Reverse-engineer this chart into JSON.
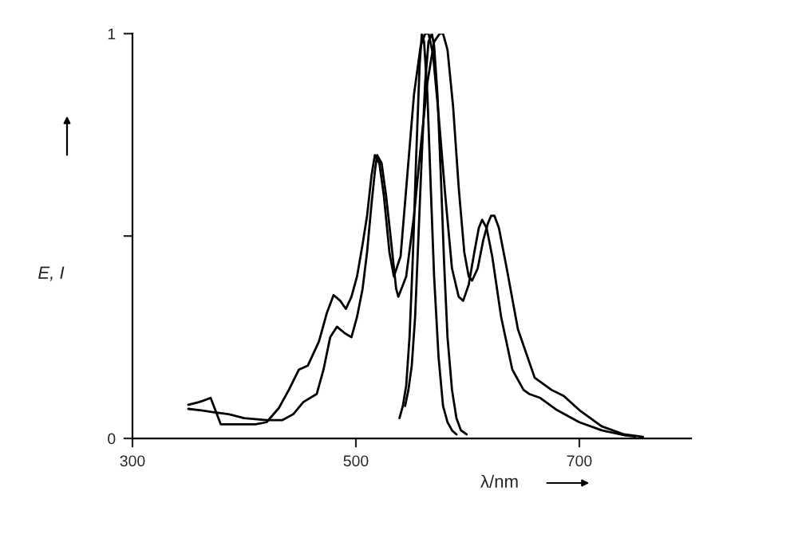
{
  "chart_data": {
    "type": "line",
    "xlabel": "λ/nm",
    "ylabel": "E, I",
    "xlim": [
      300,
      800
    ],
    "xticks": [
      300,
      500,
      700
    ],
    "ylim": [
      0,
      1
    ],
    "yticks": [
      0,
      {
        "value": 0.5,
        "label": null
      },
      1
    ],
    "grid": false,
    "marker": "none",
    "line_style": "solid",
    "series": [
      {
        "color": "#000000",
        "x": [
          350,
          360,
          370,
          379,
          390,
          410,
          420,
          431,
          440,
          449,
          457,
          467,
          474,
          480,
          486,
          491,
          496,
          501,
          506,
          510,
          514,
          517,
          521,
          525,
          530,
          534,
          540,
          546,
          552,
          558,
          562,
          565,
          569,
          574,
          580,
          586,
          592,
          596,
          601,
          606,
          610,
          613,
          617,
          622,
          630,
          640,
          650,
          655,
          665,
          680,
          700,
          720,
          740,
          750
        ],
        "values": [
          0.083,
          0.09,
          0.1,
          0.035,
          0.035,
          0.035,
          0.04,
          0.075,
          0.12,
          0.17,
          0.18,
          0.24,
          0.31,
          0.354,
          0.34,
          0.32,
          0.35,
          0.4,
          0.48,
          0.55,
          0.65,
          0.7,
          0.68,
          0.6,
          0.46,
          0.4,
          0.45,
          0.65,
          0.85,
          0.97,
          1.0,
          1.0,
          0.95,
          0.8,
          0.6,
          0.42,
          0.35,
          0.34,
          0.38,
          0.46,
          0.52,
          0.54,
          0.52,
          0.45,
          0.3,
          0.17,
          0.12,
          0.11,
          0.1,
          0.07,
          0.04,
          0.02,
          0.008,
          0.005
        ]
      },
      {
        "color": "#000000",
        "x": [
          350,
          360,
          372,
          386,
          400,
          420,
          434,
          444,
          453,
          465,
          471,
          477,
          483,
          490,
          496,
          501,
          506,
          510,
          514,
          517,
          519,
          523,
          527,
          531,
          536,
          538,
          545,
          552,
          558,
          564,
          570,
          575,
          578,
          582,
          587,
          592,
          597,
          601,
          604,
          609,
          614,
          618,
          621,
          624,
          628,
          635,
          645,
          660,
          675,
          686,
          700,
          720,
          740,
          757
        ],
        "values": [
          0.073,
          0.07,
          0.065,
          0.06,
          0.05,
          0.045,
          0.045,
          0.06,
          0.09,
          0.11,
          0.17,
          0.25,
          0.276,
          0.26,
          0.25,
          0.3,
          0.37,
          0.46,
          0.58,
          0.66,
          0.7,
          0.68,
          0.6,
          0.5,
          0.37,
          0.35,
          0.4,
          0.55,
          0.72,
          0.88,
          0.98,
          1.0,
          1.0,
          0.96,
          0.82,
          0.62,
          0.46,
          0.4,
          0.39,
          0.42,
          0.49,
          0.53,
          0.55,
          0.55,
          0.52,
          0.42,
          0.27,
          0.15,
          0.12,
          0.105,
          0.07,
          0.03,
          0.01,
          0.004
        ]
      },
      {
        "color": "#000000",
        "x": [
          539,
          542,
          545,
          548,
          551,
          554,
          557,
          559,
          561,
          564,
          567,
          570,
          574,
          578,
          582,
          586,
          590
        ],
        "values": [
          0.05,
          0.08,
          0.13,
          0.25,
          0.45,
          0.7,
          0.92,
          1.0,
          0.98,
          0.85,
          0.62,
          0.4,
          0.2,
          0.08,
          0.04,
          0.02,
          0.01
        ]
      },
      {
        "color": "#000000",
        "x": [
          544,
          547,
          550,
          553,
          556,
          559,
          562,
          565,
          568,
          570,
          573,
          576,
          579,
          582,
          586,
          590,
          594,
          599
        ],
        "values": [
          0.08,
          0.12,
          0.18,
          0.3,
          0.5,
          0.7,
          0.88,
          0.98,
          1.0,
          0.97,
          0.85,
          0.65,
          0.43,
          0.25,
          0.12,
          0.05,
          0.02,
          0.01
        ]
      }
    ]
  }
}
